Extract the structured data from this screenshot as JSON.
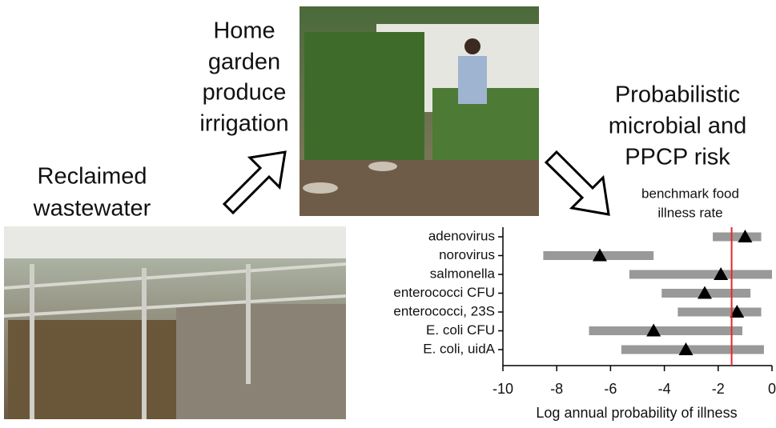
{
  "header": {
    "garden_caption": [
      "Home",
      "garden",
      "produce",
      "irrigation"
    ],
    "wastewater_caption": [
      "Reclaimed",
      "wastewater"
    ],
    "risk_caption": [
      "Probabilistic",
      "microbial and",
      "PPCP risk"
    ]
  },
  "chart_data": {
    "type": "range",
    "categories": [
      "adenovirus",
      "norovirus",
      "salmonella",
      "enterococci CFU",
      "enterococci, 23S",
      "E. coli CFU",
      "E. coli, uidA"
    ],
    "ranges": [
      [
        -2.2,
        -0.4
      ],
      [
        -8.5,
        -4.4
      ],
      [
        -5.3,
        0
      ],
      [
        -4.1,
        -0.8
      ],
      [
        -3.5,
        -0.4
      ],
      [
        -6.8,
        -1.1
      ],
      [
        -5.6,
        -0.3
      ]
    ],
    "values": [
      -1.0,
      -6.4,
      -1.9,
      -2.5,
      -1.3,
      -4.4,
      -3.2
    ],
    "bar_color": "#999999",
    "marker_color": "#000000",
    "xlim": [
      -10,
      0
    ],
    "xticks": [
      -10,
      -8,
      -6,
      -4,
      -2,
      0
    ],
    "x_label": "Log annual probability of illness",
    "benchmark": {
      "value": -1.5,
      "label": [
        "benchmark food",
        "illness rate"
      ],
      "color": "#e8262b"
    }
  }
}
